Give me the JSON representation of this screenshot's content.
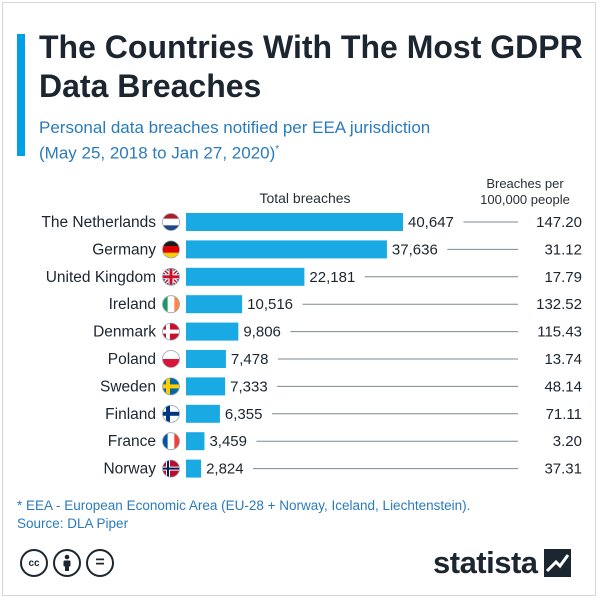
{
  "header": {
    "title": "The Countries With The Most GDPR Data Breaches",
    "subtitle_line1": "Personal data breaches notified per EEA jurisdiction",
    "subtitle_line2": "(May 25, 2018 to Jan 27, 2020)",
    "subtitle_mark": "*"
  },
  "column_headers": {
    "total": "Total breaches",
    "rate_line1": "Breaches per",
    "rate_line2": "100,000 people"
  },
  "chart_data": {
    "type": "bar",
    "orientation": "horizontal",
    "categories": [
      "The Netherlands",
      "Germany",
      "United Kingdom",
      "Ireland",
      "Denmark",
      "Poland",
      "Sweden",
      "Finland",
      "France",
      "Norway"
    ],
    "series": [
      {
        "name": "Total breaches",
        "values": [
          40647,
          37636,
          22181,
          10516,
          9806,
          7478,
          7333,
          6355,
          3459,
          2824
        ],
        "labels": [
          "40,647",
          "37,636",
          "22,181",
          "10,516",
          "9,806",
          "7,478",
          "7,333",
          "6,355",
          "3,459",
          "2,824"
        ]
      },
      {
        "name": "Breaches per 100,000 people",
        "values": [
          147.2,
          31.12,
          17.79,
          132.52,
          115.43,
          13.74,
          48.14,
          71.11,
          3.2,
          37.31
        ],
        "labels": [
          "147.20",
          "31.12",
          "17.79",
          "132.52",
          "115.43",
          "13.74",
          "48.14",
          "71.11",
          "3.20",
          "37.31"
        ]
      }
    ],
    "flags": [
      "nl",
      "de",
      "gb",
      "ie",
      "dk",
      "pl",
      "se",
      "fi",
      "fr",
      "no"
    ],
    "bar_color": "#1aaae3",
    "xlim": [
      0,
      40647
    ],
    "grid": false,
    "legend": "none"
  },
  "footnote": {
    "line1": "* EEA - European Economic Area (EU-28 + Norway, Iceland, Liechtenstein).",
    "line2": "Source: DLA Piper"
  },
  "license_icons": [
    "cc-icon",
    "attribution-icon",
    "no-derivatives-icon"
  ],
  "license_texts": {
    "cc": "cc",
    "nd": "="
  },
  "brand": {
    "name": "statista",
    "color": "#1b2630"
  }
}
